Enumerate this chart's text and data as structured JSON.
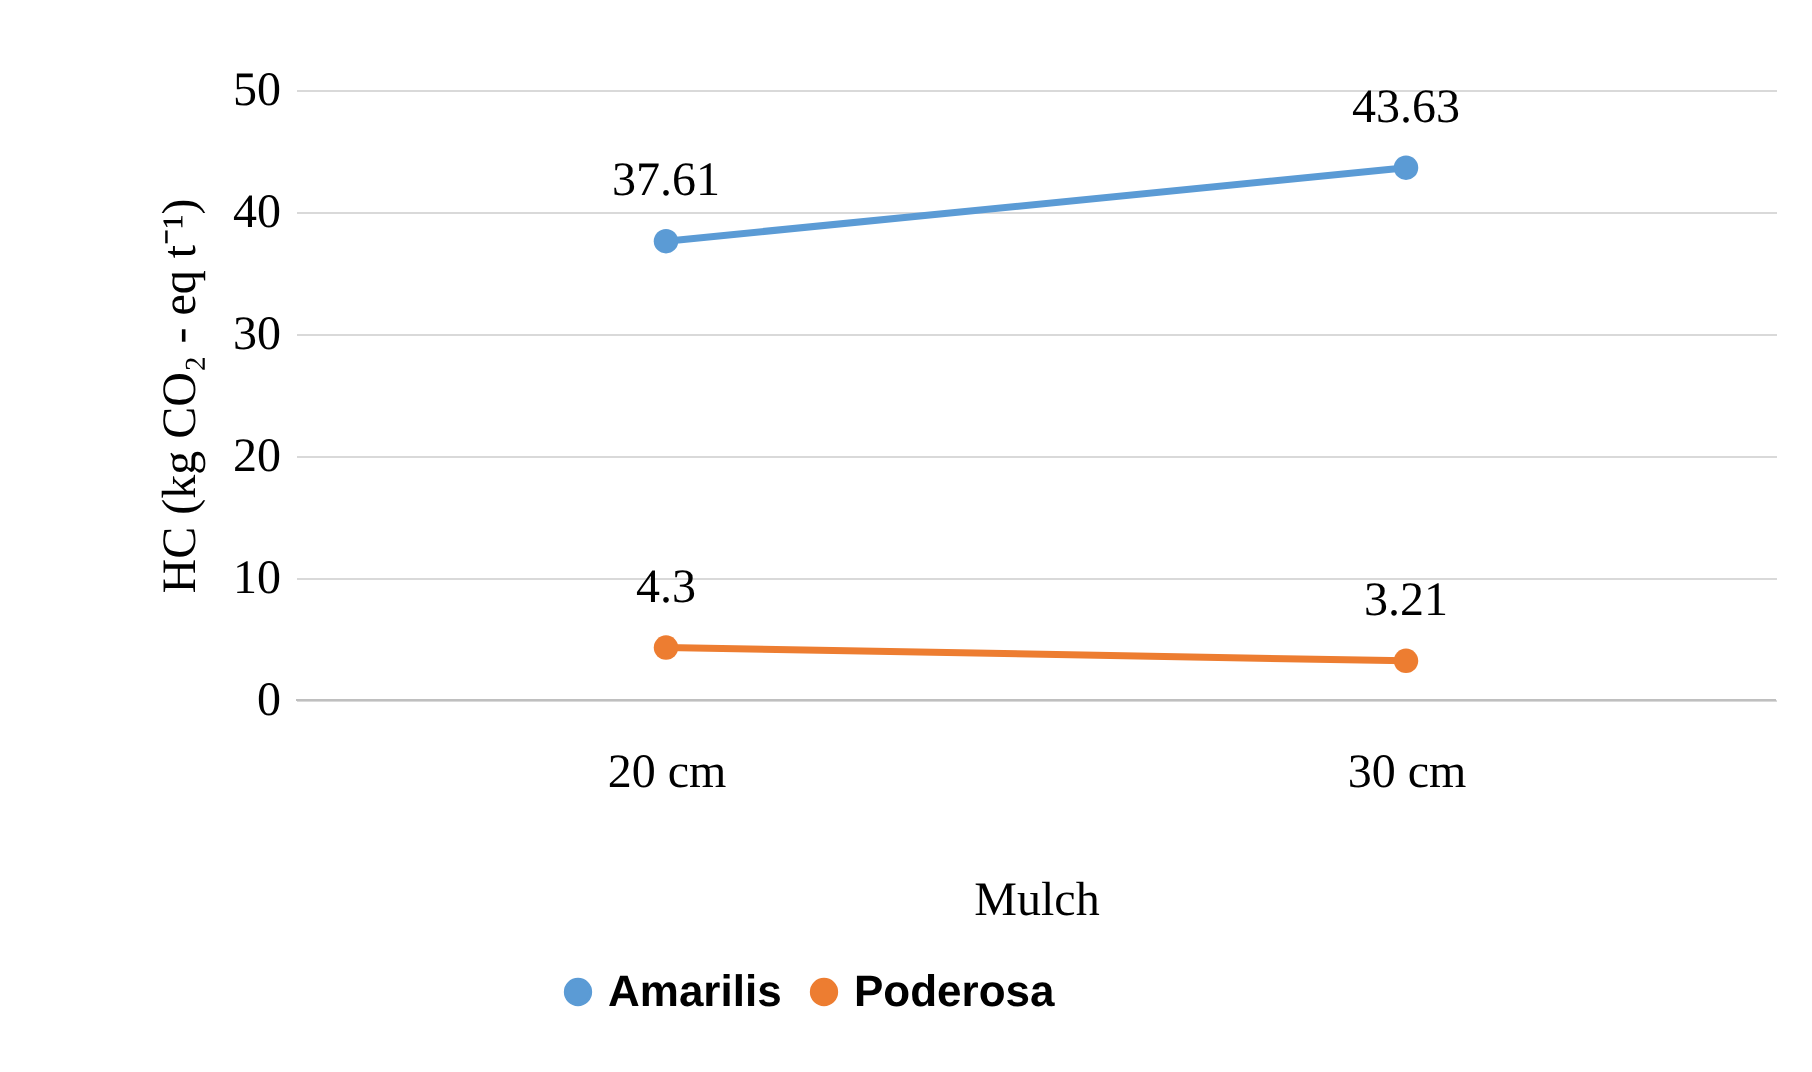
{
  "chart_data": {
    "type": "line",
    "xlabel": "Mulch",
    "ylabel": "HC (kg CO₂ - eq t⁻¹)",
    "categories": [
      "20 cm",
      "30 cm"
    ],
    "series": [
      {
        "name": "Amarilis",
        "color": "#5b9bd5",
        "values": [
          37.61,
          43.63
        ]
      },
      {
        "name": "Poderosa",
        "color": "#ed7d31",
        "values": [
          4.3,
          3.21
        ]
      }
    ],
    "ylim": [
      0,
      50
    ],
    "yticks": [
      0,
      10,
      20,
      30,
      40,
      50
    ],
    "grid": "y",
    "legend": "bottom",
    "marker": "circle",
    "data_labels": true
  }
}
